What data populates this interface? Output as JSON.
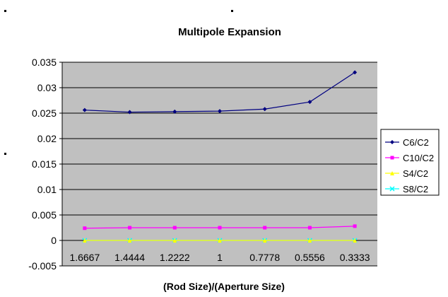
{
  "chart_data": {
    "type": "line",
    "title": "Multipole Expansion",
    "xlabel": "(Rod Size)/(Aperture Size)",
    "ylabel": "",
    "categories": [
      "1.6667",
      "1.4444",
      "1.2222",
      "1",
      "0.7778",
      "0.5556",
      "0.3333"
    ],
    "ylim": [
      -0.005,
      0.035
    ],
    "yticks": [
      -0.005,
      0,
      0.005,
      0.01,
      0.015,
      0.02,
      0.025,
      0.03,
      0.035
    ],
    "ytick_labels": [
      "-0.005",
      "0",
      "0.005",
      "0.01",
      "0.015",
      "0.02",
      "0.025",
      "0.03",
      "0.035"
    ],
    "grid": true,
    "plot_background": "#c0c0c0",
    "legend_position": "right",
    "series": [
      {
        "name": "C6/C2",
        "color": "#000080",
        "marker": "diamond",
        "values": [
          0.0256,
          0.0252,
          0.0253,
          0.0254,
          0.0258,
          0.0272,
          0.033
        ]
      },
      {
        "name": "C10/C2",
        "color": "#ff00ff",
        "marker": "square",
        "values": [
          0.0024,
          0.0025,
          0.0025,
          0.0025,
          0.0025,
          0.0025,
          0.0028
        ]
      },
      {
        "name": "S4/C2",
        "color": "#ffff00",
        "marker": "triangle",
        "values": [
          0.0,
          0.0,
          0.0,
          0.0,
          0.0,
          0.0,
          0.0
        ]
      },
      {
        "name": "S8/C2",
        "color": "#00ffff",
        "marker": "x",
        "values": [
          0.0,
          0.0,
          0.0,
          0.0,
          0.0,
          0.0,
          0.0
        ]
      }
    ]
  }
}
